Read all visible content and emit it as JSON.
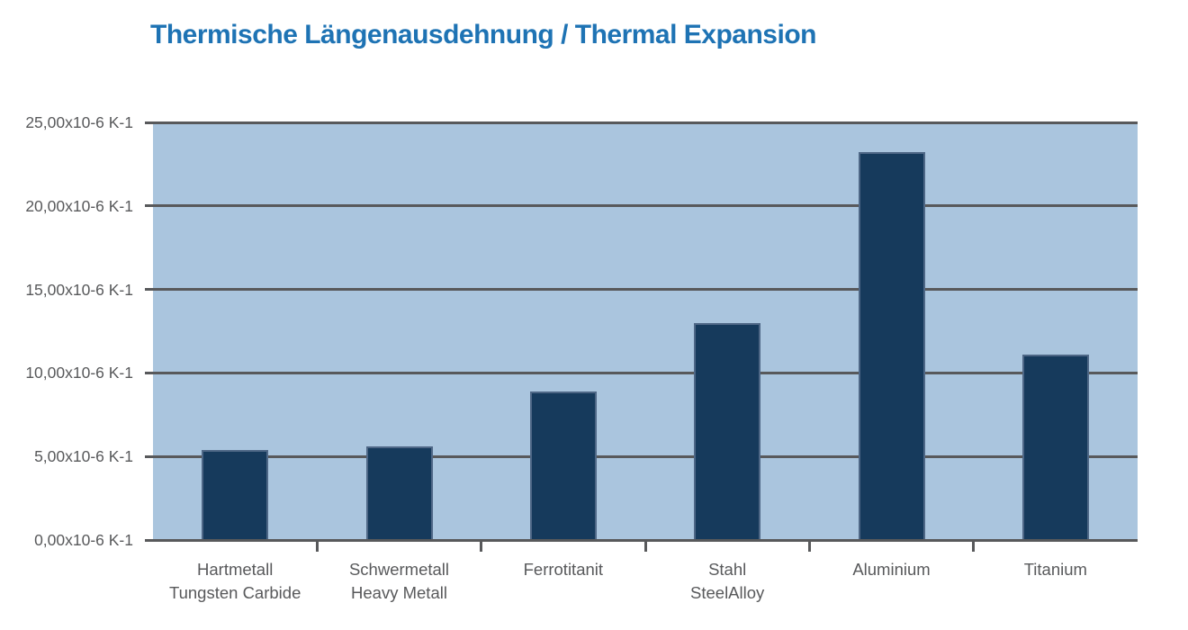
{
  "title": "Thermische Längenausdehnung / Thermal Expansion",
  "colors": {
    "title_color": "#1E73B4",
    "plot_bg": "#AAC5DE",
    "bar_fill": "#163A5C",
    "bar_stroke": "#4E6786",
    "grid_color": "#58595B",
    "label_color": "#58595B"
  },
  "chart_data": {
    "type": "bar",
    "title": "Thermische Längenausdehnung / Thermal Expansion",
    "unit": "x10-6 K-1",
    "categories": [
      {
        "line1": "Hartmetall",
        "line2": "Tungsten Carbide"
      },
      {
        "line1": "Schwermetall",
        "line2": "Heavy Metall"
      },
      {
        "line1": "Ferrotitanit",
        "line2": ""
      },
      {
        "line1": "Stahl",
        "line2": "SteelAlloy"
      },
      {
        "line1": "Aluminium",
        "line2": ""
      },
      {
        "line1": "Titanium",
        "line2": ""
      }
    ],
    "values": [
      5.4,
      5.6,
      8.9,
      13.0,
      23.2,
      11.1
    ],
    "y_ticks": [
      {
        "value": 0,
        "label": "0,00x10-6 K-1"
      },
      {
        "value": 5,
        "label": "5,00x10-6 K-1"
      },
      {
        "value": 10,
        "label": "10,00x10-6 K-1"
      },
      {
        "value": 15,
        "label": "15,00x10-6 K-1"
      },
      {
        "value": 20,
        "label": "20,00x10-6 K-1"
      },
      {
        "value": 25,
        "label": "25,00x10-6 K-1"
      }
    ],
    "ylim": [
      0,
      25
    ],
    "grid": true,
    "legend": false,
    "xlabel": "",
    "ylabel": ""
  }
}
